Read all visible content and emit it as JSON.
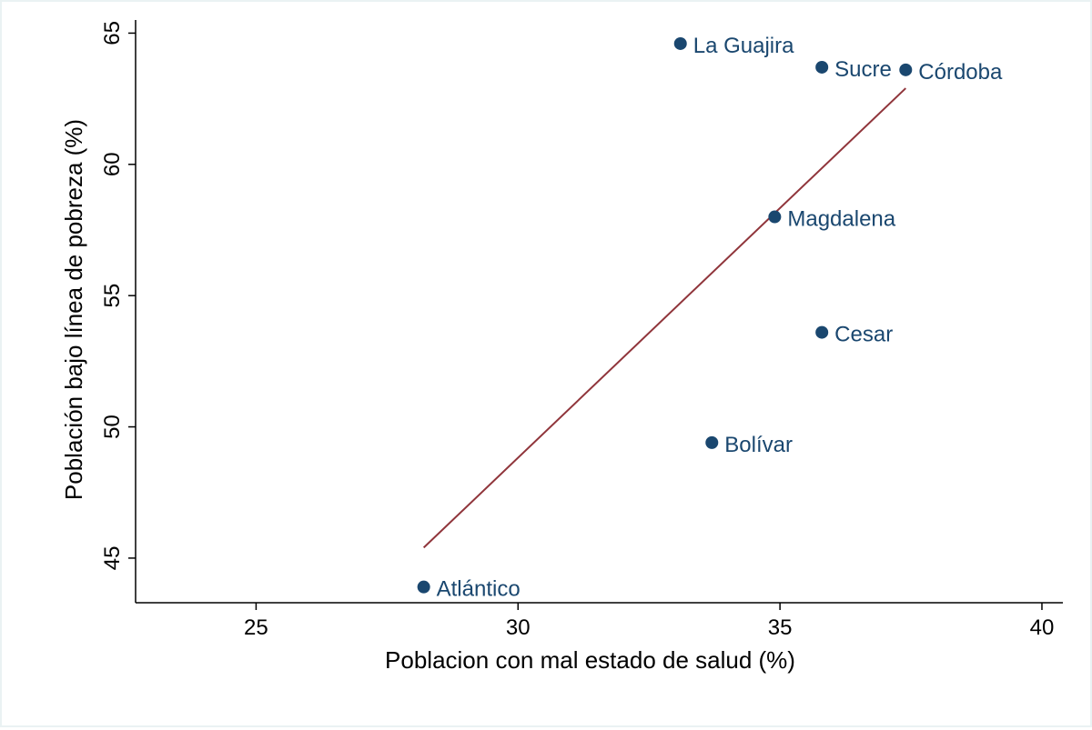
{
  "chart_data": {
    "type": "scatter",
    "xlabel": "Poblacion con mal estado de salud (%)",
    "ylabel": "Población bajo línea de pobreza (%)",
    "xlim": [
      22.7,
      40.4
    ],
    "ylim": [
      43.3,
      65.5
    ],
    "xticks": [
      25,
      30,
      35,
      40
    ],
    "yticks": [
      45,
      50,
      55,
      60,
      65
    ],
    "grid": false,
    "points": [
      {
        "label": "La Guajira",
        "x": 33.1,
        "y": 64.6
      },
      {
        "label": "Sucre",
        "x": 35.8,
        "y": 63.7
      },
      {
        "label": "Córdoba",
        "x": 37.4,
        "y": 63.6
      },
      {
        "label": "Magdalena",
        "x": 34.9,
        "y": 58.0
      },
      {
        "label": "Cesar",
        "x": 35.8,
        "y": 53.6
      },
      {
        "label": "Bolívar",
        "x": 33.7,
        "y": 49.4
      },
      {
        "label": "Atlántico",
        "x": 28.2,
        "y": 43.9
      }
    ],
    "fit_line": {
      "x": [
        28.2,
        37.4
      ],
      "y": [
        45.4,
        62.9
      ]
    },
    "colors": {
      "marker": "#1a476f",
      "label": "#1a476f",
      "fit_line": "#90353b",
      "axis": "#000000"
    }
  }
}
